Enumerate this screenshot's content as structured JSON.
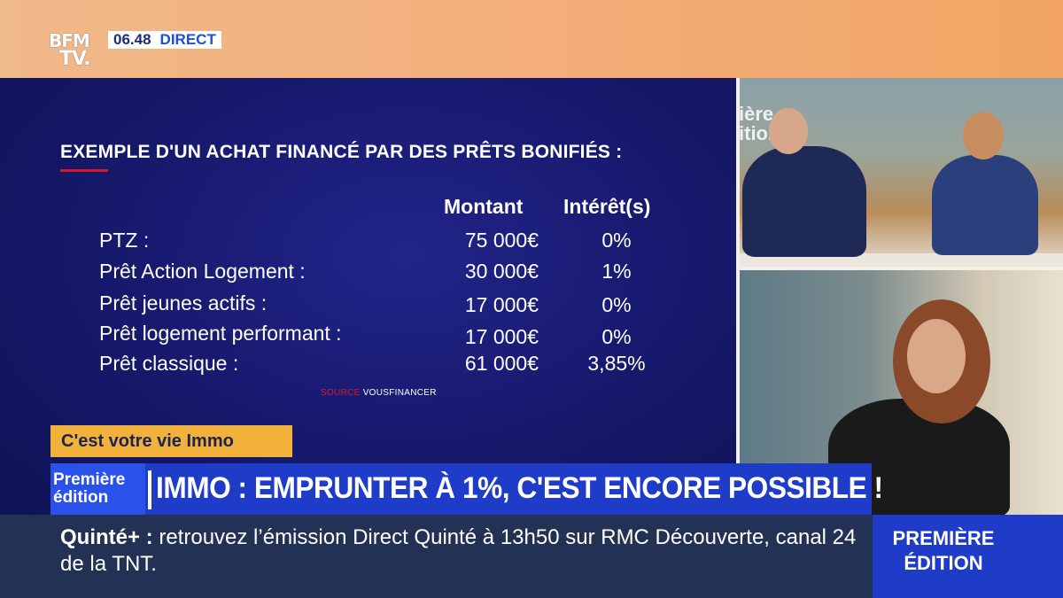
{
  "channel": {
    "logo_line1": "BFM",
    "logo_line2": "TV.",
    "time": "06.48",
    "live_label": "DIRECT"
  },
  "graphic": {
    "title": "EXEMPLE D'UN ACHAT FINANCÉ PAR DES PRÊTS BONIFIÉS :",
    "col_amount": "Montant",
    "col_rate": "Intérêt(s)",
    "rows": [
      {
        "label": "PTZ :",
        "amount": "75 000€",
        "rate": "0%"
      },
      {
        "label": "Prêt Action Logement :",
        "amount": "30 000€",
        "rate": "1%"
      },
      {
        "label": "Prêt jeunes actifs :",
        "amount": "17 000€",
        "rate": "0%"
      },
      {
        "label": "Prêt logement performant :",
        "amount": "17 000€",
        "rate": "0%"
      },
      {
        "label": "Prêt classique :",
        "amount": "61 000€",
        "rate": "3,85%"
      }
    ],
    "source_key": "SOURCE",
    "source_value": "VOUSFINANCER"
  },
  "studio": {
    "bg_text": "ière\nition"
  },
  "tag": "C'est votre vie Immo",
  "headline": {
    "badge_line1": "Première",
    "badge_line2": "édition",
    "text": "IMMO : EMPRUNTER À 1%, C'EST ENCORE POSSIBLE !"
  },
  "ticker": {
    "keyword": "Quinté+ :",
    "text": "retrouvez l’émission Direct Quinté à 13h50 sur RMC Découverte, canal 24 de la TNT."
  },
  "corner": {
    "line1": "PREMIÈRE",
    "line2": "ÉDITION"
  },
  "colors": {
    "headline_blue": "#1f3cc9",
    "tag_yellow": "#f2b13a",
    "accent_red": "#d6182a"
  }
}
